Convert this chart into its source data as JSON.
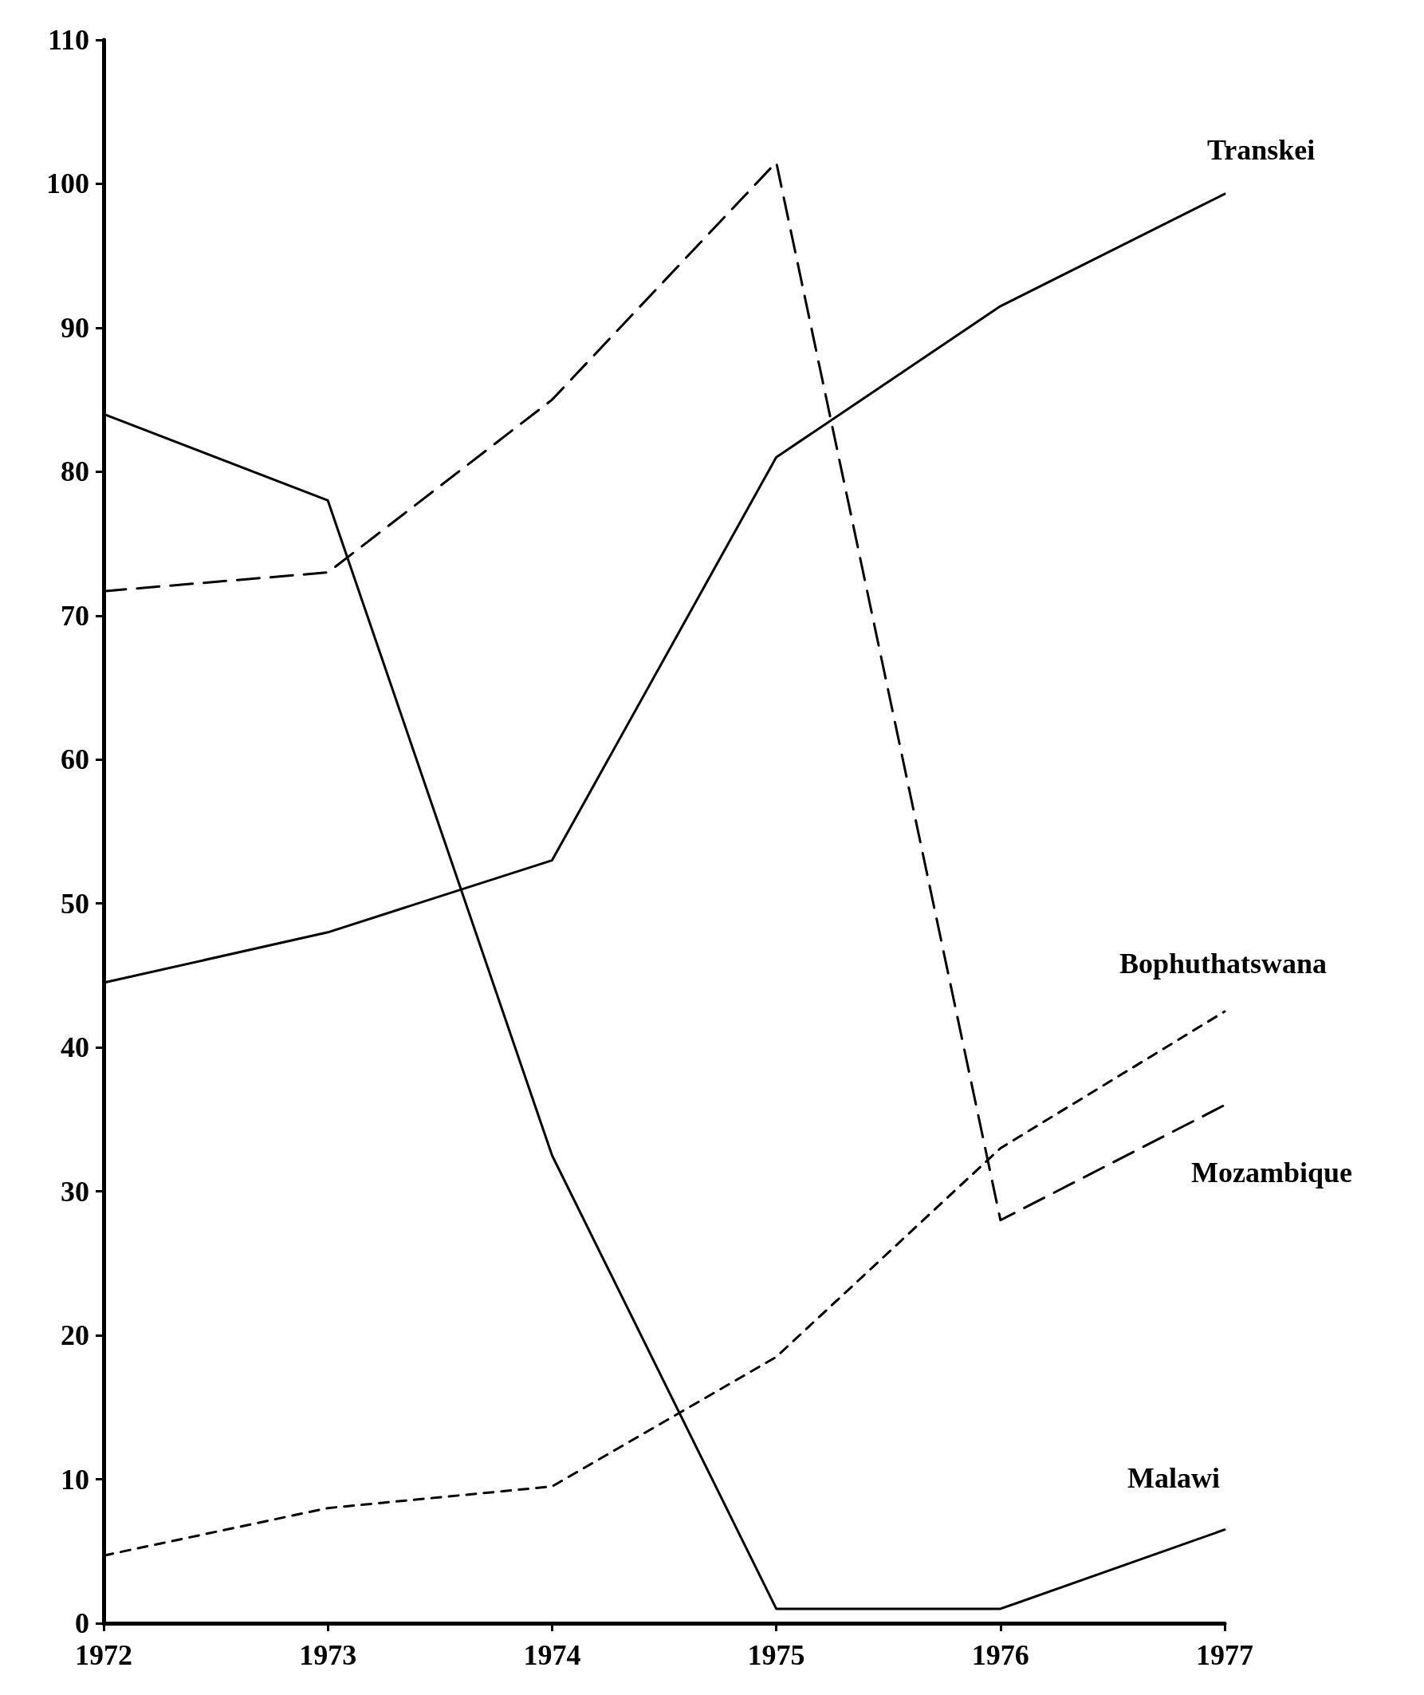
{
  "chart_data": {
    "type": "line",
    "x": [
      1972,
      1973,
      1974,
      1975,
      1976,
      1977
    ],
    "xlim": [
      1972,
      1977
    ],
    "xticks": [
      1972,
      1973,
      1974,
      1975,
      1976,
      1977
    ],
    "ylim": [
      0,
      110
    ],
    "yticks": [
      0,
      10,
      20,
      30,
      40,
      50,
      60,
      70,
      80,
      90,
      100,
      110
    ],
    "grid": false,
    "legend": false,
    "marker": "none",
    "series": [
      {
        "name": "Transkei",
        "color": "#000000",
        "line_style": "solid",
        "values": [
          44.5,
          48,
          53,
          81,
          91.5,
          99.3
        ]
      },
      {
        "name": "Bophuthatswana",
        "color": "#000000",
        "line_style": "dotted",
        "values": [
          4.7,
          8,
          9.5,
          18.5,
          33,
          42.5
        ]
      },
      {
        "name": "Mozambique",
        "color": "#000000",
        "line_style": "dashed",
        "values": [
          71.7,
          73,
          85,
          101.5,
          28,
          36
        ]
      },
      {
        "name": "Malawi",
        "color": "#000000",
        "line_style": "solid",
        "values": [
          84,
          78,
          32.5,
          1,
          1,
          6.5
        ]
      }
    ]
  }
}
